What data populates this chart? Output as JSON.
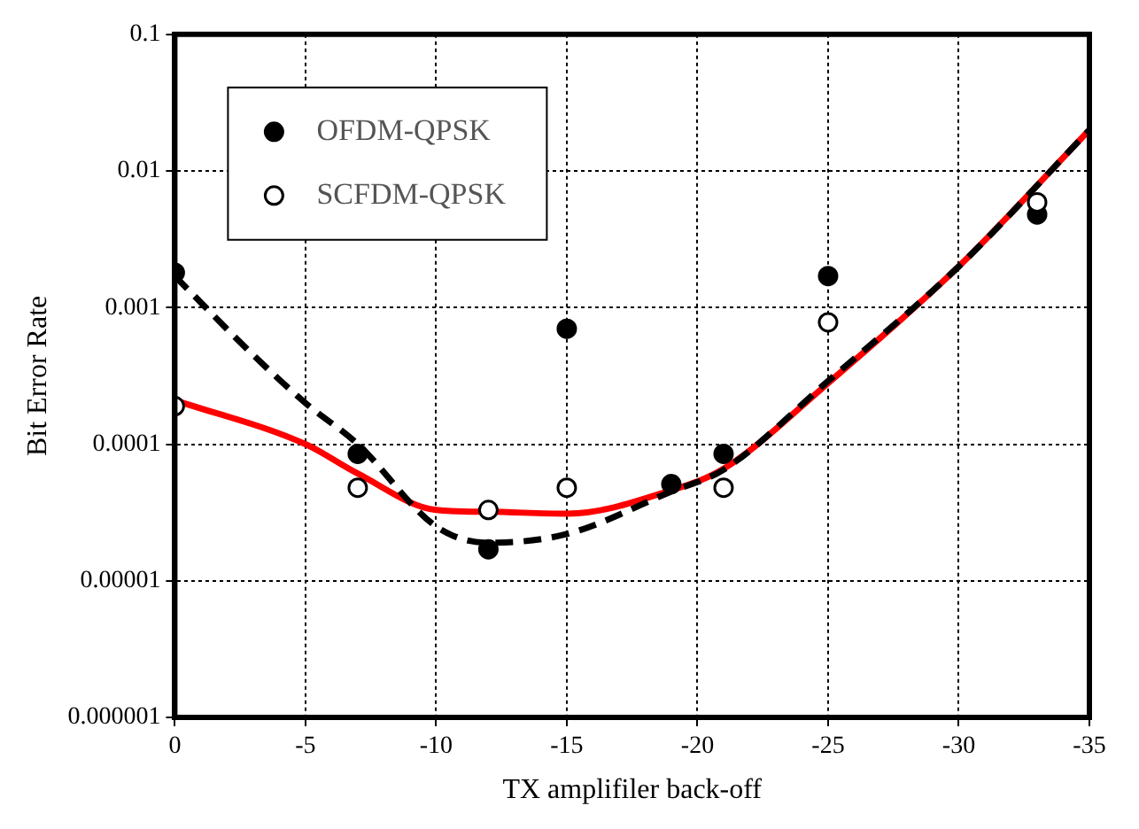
{
  "chart_data": {
    "type": "scatter",
    "xlabel": "TX amplifiler back-off",
    "ylabel": "Bit Error Rate",
    "xlim": [
      0,
      -35
    ],
    "xticks": [
      0,
      -5,
      -10,
      -15,
      -20,
      -25,
      -30,
      -35
    ],
    "ylim": [
      1e-06,
      0.1
    ],
    "yticks": [
      {
        "value": 1e-06,
        "label": "0.000001"
      },
      {
        "value": 1e-05,
        "label": "0.00001"
      },
      0.0001,
      0.001,
      0.01,
      0.1
    ],
    "log": "y",
    "grid": true,
    "legend": "top left",
    "marker": "circle",
    "series": [
      {
        "name": "OFDM-QPSK",
        "color": "#000000",
        "x": [
          0,
          -7,
          -12,
          -15,
          -19,
          -21,
          -25,
          -33
        ],
        "values": [
          0.0018,
          8.5e-05,
          1.7e-05,
          0.0007,
          5.1e-05,
          8.5e-05,
          0.0017,
          0.0048
        ]
      },
      {
        "name": "SCFDM-QPSK",
        "color": "#000000",
        "x": [
          0,
          -7,
          -12,
          -15,
          -21,
          -25,
          -33
        ],
        "values": [
          0.00019,
          4.8e-05,
          3.3e-05,
          4.8e-05,
          4.8e-05,
          0.00078,
          0.0059
        ]
      },
      {
        "type": "line",
        "color": "#000000",
        "line_style": "dashed",
        "marker": "none",
        "x": [
          0,
          -3,
          -5,
          -7,
          -10,
          -12,
          -15,
          -19,
          -21,
          -25,
          -30,
          -35
        ],
        "values": [
          0.0017,
          0.00045,
          0.0002,
          0.0001,
          2.5e-05,
          1.9e-05,
          2.2e-05,
          4.5e-05,
          6.5e-05,
          0.00029,
          0.002,
          0.02
        ]
      },
      {
        "type": "line",
        "color": "#ff0000",
        "line_style": "solid",
        "marker": "none",
        "x": [
          0,
          -5,
          -7,
          -10,
          -12,
          -15,
          -19,
          -21,
          -25,
          -30,
          -35
        ],
        "values": [
          0.00021,
          0.0001,
          6.1e-05,
          3.3e-05,
          3.2e-05,
          3.1e-05,
          4.6e-05,
          6.6e-05,
          0.00028,
          0.002,
          0.02
        ]
      }
    ]
  }
}
